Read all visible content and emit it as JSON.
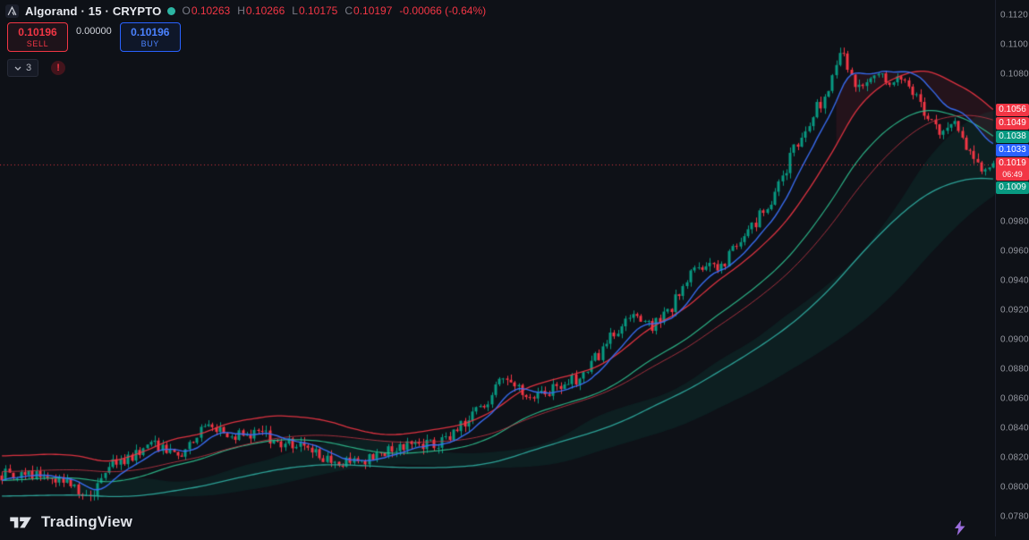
{
  "header": {
    "symbol_title": "Algorand · 15 · CRYPTO",
    "ohlc_pairs": [
      {
        "label": "O",
        "value": "0.10263"
      },
      {
        "label": "H",
        "value": "0.10266"
      },
      {
        "label": "L",
        "value": "0.10175"
      },
      {
        "label": "C",
        "value": "0.10197"
      }
    ],
    "change": "-0.00066 (-0.64%)",
    "sell_button": {
      "price": "0.10196",
      "label": "SELL"
    },
    "spread": "0.00000",
    "buy_button": {
      "price": "0.10196",
      "label": "BUY"
    },
    "tree_toggle": {
      "count": "3"
    },
    "alert_icon": "!"
  },
  "colors": {
    "up": "#089981",
    "down": "#f23645",
    "blue_line": "#3a6ff7",
    "green_line": "#2fbf8f",
    "teal_line": "#2ea99d",
    "red_line": "#f23645",
    "red_line2": "#c73847",
    "bg": "#0e1117",
    "axis_text": "#9598a1"
  },
  "y_axis": {
    "top_price": 0.11303,
    "bottom_price": 0.07667,
    "ticks": [
      "0.1120",
      "0.1100",
      "0.1080",
      "0.0980",
      "0.0960",
      "0.0940",
      "0.0920",
      "0.0900",
      "0.0880",
      "0.0860",
      "0.0840",
      "0.0820",
      "0.0800",
      "0.0780"
    ]
  },
  "price_labels": [
    {
      "value": "0.1056",
      "price": 0.1056,
      "color": "#f23645"
    },
    {
      "value": "0.1049",
      "price": 0.1049,
      "color": "#f23645"
    },
    {
      "value": "0.1038",
      "price": 0.1038,
      "color": "#089981"
    },
    {
      "value": "0.1033",
      "price": 0.1033,
      "color": "#2962ff"
    },
    {
      "value": "0.1019",
      "countdown": "06:49",
      "price": 0.1019,
      "color": "#f23645",
      "current": true
    },
    {
      "value": "0.1009",
      "price": 0.1009,
      "color": "#089981"
    }
  ],
  "chart_data": {
    "type": "candlestick",
    "title": "Algorand 15m CRYPTO",
    "interval": "15",
    "last_price": 0.10197,
    "candle_count": 260,
    "ylim": [
      0.078,
      0.112
    ],
    "price_path": [
      [
        0,
        0.0808
      ],
      [
        0.027,
        0.081
      ],
      [
        0.054,
        0.0806
      ],
      [
        0.081,
        0.0798
      ],
      [
        0.09,
        0.0794
      ],
      [
        0.104,
        0.0812
      ],
      [
        0.126,
        0.082
      ],
      [
        0.153,
        0.083
      ],
      [
        0.18,
        0.0824
      ],
      [
        0.207,
        0.0841
      ],
      [
        0.23,
        0.0836
      ],
      [
        0.257,
        0.0838
      ],
      [
        0.284,
        0.083
      ],
      [
        0.311,
        0.0827
      ],
      [
        0.333,
        0.0818
      ],
      [
        0.356,
        0.0817
      ],
      [
        0.383,
        0.0823
      ],
      [
        0.41,
        0.0831
      ],
      [
        0.432,
        0.0828
      ],
      [
        0.455,
        0.0836
      ],
      [
        0.473,
        0.0848
      ],
      [
        0.491,
        0.0858
      ],
      [
        0.505,
        0.0874
      ],
      [
        0.518,
        0.0866
      ],
      [
        0.541,
        0.0862
      ],
      [
        0.563,
        0.087
      ],
      [
        0.586,
        0.0875
      ],
      [
        0.604,
        0.0892
      ],
      [
        0.622,
        0.0908
      ],
      [
        0.64,
        0.0918
      ],
      [
        0.656,
        0.0908
      ],
      [
        0.674,
        0.092
      ],
      [
        0.692,
        0.0942
      ],
      [
        0.71,
        0.0953
      ],
      [
        0.725,
        0.0948
      ],
      [
        0.739,
        0.0962
      ],
      [
        0.757,
        0.0978
      ],
      [
        0.773,
        0.099
      ],
      [
        0.786,
        0.1006
      ],
      [
        0.8,
        0.1032
      ],
      [
        0.813,
        0.1046
      ],
      [
        0.827,
        0.1062
      ],
      [
        0.84,
        0.1082
      ],
      [
        0.849,
        0.1098
      ],
      [
        0.856,
        0.1078
      ],
      [
        0.869,
        0.107
      ],
      [
        0.883,
        0.1083
      ],
      [
        0.896,
        0.1076
      ],
      [
        0.91,
        0.108
      ],
      [
        0.923,
        0.1065
      ],
      [
        0.937,
        0.1048
      ],
      [
        0.948,
        0.1042
      ],
      [
        0.959,
        0.1047
      ],
      [
        0.971,
        0.1032
      ],
      [
        0.984,
        0.1016
      ],
      [
        1,
        0.10197
      ]
    ],
    "indicators": {
      "red_upper_end": 0.1056,
      "red_second_end": 0.1049,
      "green_end": 0.1038,
      "blue_end": 0.1033,
      "teal_lower_end": 0.1009,
      "current_price": 0.1019
    }
  },
  "footer": {
    "logo_text": "TradingView"
  }
}
